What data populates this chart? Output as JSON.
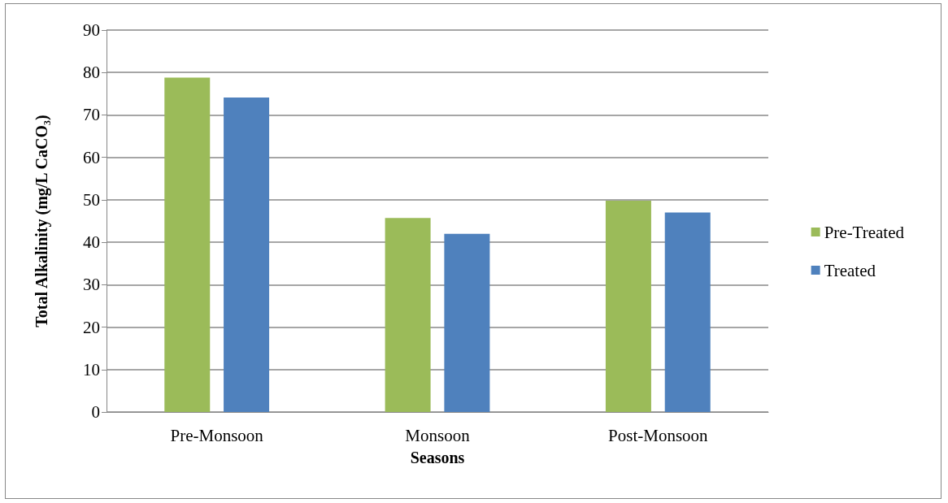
{
  "chart_data": {
    "type": "bar",
    "xlabel": "Seasons",
    "ylabel": "Total Alkalinity (mg/L CaCO₃)",
    "categories": [
      "Pre-Monsoon",
      "Monsoon",
      "Post-Monsoon"
    ],
    "series": [
      {
        "name": "Pre-Treated",
        "color": "#9bbb59",
        "values": [
          78.8,
          45.7,
          49.8
        ]
      },
      {
        "name": "Treated",
        "color": "#4f81bd",
        "values": [
          74.1,
          42,
          47
        ]
      }
    ],
    "ylim": [
      0,
      90
    ],
    "yticks": [
      0,
      10,
      20,
      30,
      40,
      50,
      60,
      70,
      80,
      90
    ],
    "grid": "y",
    "legend": "right"
  }
}
